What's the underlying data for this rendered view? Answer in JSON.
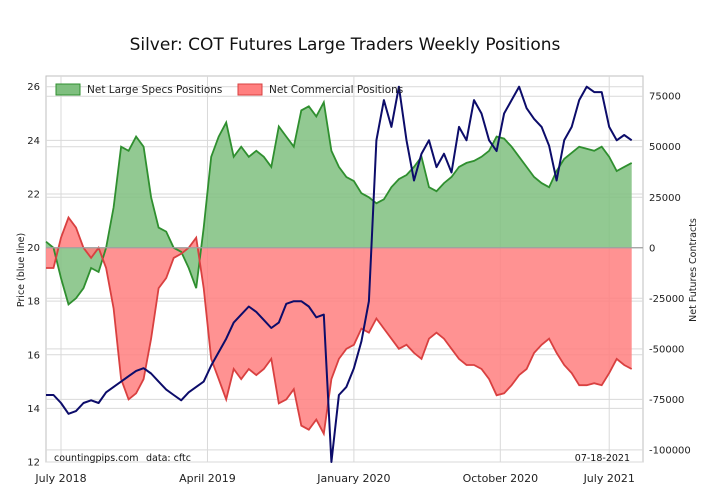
{
  "chart_data": {
    "type": "area",
    "title": "Silver: COT Futures Large Traders Weekly Positions",
    "ylabel_left": "Price (blue line)",
    "ylabel_right": "Net Futures Contracts",
    "xlim": [
      0,
      159
    ],
    "ylim_left": [
      12,
      26.4
    ],
    "ylim_right": [
      -106000,
      85000
    ],
    "left_ticks": [
      {
        "v": 12,
        "label": "12"
      },
      {
        "v": 14,
        "label": "14"
      },
      {
        "v": 16,
        "label": "16"
      },
      {
        "v": 18,
        "label": "18"
      },
      {
        "v": 20,
        "label": "20"
      },
      {
        "v": 22,
        "label": "22"
      },
      {
        "v": 24,
        "label": "24"
      },
      {
        "v": 26,
        "label": "26"
      }
    ],
    "right_ticks": [
      {
        "v": 75000,
        "label": "75000"
      },
      {
        "v": 50000,
        "label": "50000"
      },
      {
        "v": 25000,
        "label": "25000"
      },
      {
        "v": 0,
        "label": "0"
      },
      {
        "v": -25000,
        "label": "-25000"
      },
      {
        "v": -50000,
        "label": "-50000"
      },
      {
        "v": -75000,
        "label": "-75000"
      },
      {
        "v": -100000,
        "label": "-100000"
      }
    ],
    "x_ticks": [
      {
        "v": 4,
        "label": "July 2018"
      },
      {
        "v": 43,
        "label": "April 2019"
      },
      {
        "v": 82,
        "label": "January 2020"
      },
      {
        "v": 121,
        "label": "October 2020"
      },
      {
        "v": 150,
        "label": "July 2021"
      }
    ],
    "grid": true,
    "legend_placement": "top-left",
    "colors": {
      "specs_fill": "#7fbf7f",
      "specs_line": "#2f8f2f",
      "comm_fill": "#ff7f7f",
      "comm_line": "#d94040",
      "price_line": "#0c0c6a"
    },
    "series": [
      {
        "name": "Net Large Specs Positions",
        "x": [
          0,
          2,
          4,
          6,
          8,
          10,
          12,
          14,
          16,
          18,
          20,
          22,
          24,
          26,
          28,
          30,
          32,
          34,
          36,
          38,
          40,
          42,
          44,
          46,
          48,
          50,
          52,
          54,
          56,
          58,
          60,
          62,
          64,
          66,
          68,
          70,
          72,
          74,
          76,
          78,
          80,
          82,
          84,
          86,
          88,
          90,
          92,
          94,
          96,
          98,
          100,
          102,
          104,
          106,
          108,
          110,
          112,
          114,
          116,
          118,
          120,
          122,
          124,
          126,
          128,
          130,
          132,
          134,
          136,
          138,
          140,
          142,
          144,
          146,
          148,
          150,
          152,
          154,
          156
        ],
        "values": [
          3000,
          0,
          -15000,
          -28000,
          -25000,
          -20000,
          -10000,
          -12000,
          0,
          20000,
          50000,
          48000,
          55000,
          50000,
          25000,
          10000,
          8000,
          0,
          -2000,
          -10000,
          -20000,
          10000,
          45000,
          55000,
          62000,
          45000,
          50000,
          45000,
          48000,
          45000,
          40000,
          60000,
          55000,
          50000,
          68000,
          70000,
          65000,
          72000,
          48000,
          40000,
          35000,
          33000,
          27000,
          25000,
          22000,
          24000,
          30000,
          34000,
          36000,
          40000,
          45000,
          30000,
          28000,
          32000,
          35000,
          40000,
          42000,
          43000,
          45000,
          48000,
          55000,
          54000,
          50000,
          45000,
          40000,
          35000,
          32000,
          30000,
          38000,
          44000,
          47000,
          50000,
          49000,
          48000,
          50000,
          45000,
          38000,
          40000,
          42000
        ]
      },
      {
        "name": "Net Commercial Positions",
        "x": [
          0,
          2,
          4,
          6,
          8,
          10,
          12,
          14,
          16,
          18,
          20,
          22,
          24,
          26,
          28,
          30,
          32,
          34,
          36,
          38,
          40,
          42,
          44,
          46,
          48,
          50,
          52,
          54,
          56,
          58,
          60,
          62,
          64,
          66,
          68,
          70,
          72,
          74,
          76,
          78,
          80,
          82,
          84,
          86,
          88,
          90,
          92,
          94,
          96,
          98,
          100,
          102,
          104,
          106,
          108,
          110,
          112,
          114,
          116,
          118,
          120,
          122,
          124,
          126,
          128,
          130,
          132,
          134,
          136,
          138,
          140,
          142,
          144,
          146,
          148,
          150,
          152,
          154,
          156
        ],
        "values": [
          -10000,
          -10000,
          5000,
          15000,
          10000,
          0,
          -5000,
          0,
          -10000,
          -30000,
          -65000,
          -75000,
          -72000,
          -65000,
          -45000,
          -20000,
          -15000,
          -5000,
          -3000,
          0,
          5000,
          -20000,
          -55000,
          -65000,
          -75000,
          -60000,
          -65000,
          -60000,
          -63000,
          -60000,
          -55000,
          -77000,
          -75000,
          -70000,
          -88000,
          -90000,
          -85000,
          -92000,
          -65000,
          -55000,
          -50000,
          -48000,
          -40000,
          -42000,
          -35000,
          -40000,
          -45000,
          -50000,
          -48000,
          -52000,
          -55000,
          -45000,
          -42000,
          -45000,
          -50000,
          -55000,
          -58000,
          -58000,
          -60000,
          -65000,
          -73000,
          -72000,
          -68000,
          -63000,
          -60000,
          -52000,
          -48000,
          -45000,
          -52000,
          -58000,
          -62000,
          -68000,
          -68000,
          -67000,
          -68000,
          -62000,
          -55000,
          -58000,
          -60000
        ]
      },
      {
        "name": "Price",
        "x": [
          0,
          2,
          4,
          6,
          8,
          10,
          12,
          14,
          16,
          18,
          20,
          22,
          24,
          26,
          28,
          30,
          32,
          34,
          36,
          38,
          40,
          42,
          44,
          46,
          48,
          50,
          52,
          54,
          56,
          58,
          60,
          62,
          64,
          66,
          68,
          70,
          72,
          74,
          76,
          78,
          80,
          82,
          84,
          86,
          88,
          90,
          92,
          94,
          96,
          98,
          100,
          102,
          104,
          106,
          108,
          110,
          112,
          114,
          116,
          118,
          120,
          122,
          124,
          126,
          128,
          130,
          132,
          134,
          136,
          138,
          140,
          142,
          144,
          146,
          148,
          150,
          152,
          154,
          156
        ],
        "values": [
          14.5,
          14.5,
          14.2,
          13.8,
          13.9,
          14.2,
          14.3,
          14.2,
          14.6,
          14.8,
          15.0,
          15.2,
          15.4,
          15.5,
          15.3,
          15.0,
          14.7,
          14.5,
          14.3,
          14.6,
          14.8,
          15.0,
          15.6,
          16.1,
          16.6,
          17.2,
          17.5,
          17.8,
          17.6,
          17.3,
          17.0,
          17.2,
          17.9,
          18.0,
          18.0,
          17.8,
          17.4,
          17.5,
          12.0,
          14.5,
          14.8,
          15.5,
          16.5,
          18.0,
          24.0,
          25.5,
          24.5,
          26.0,
          24.0,
          22.5,
          23.5,
          24.0,
          23.0,
          23.5,
          22.8,
          24.5,
          24.0,
          25.5,
          25.0,
          24.0,
          23.6,
          25.0,
          25.5,
          26.0,
          25.2,
          24.8,
          24.5,
          23.8,
          22.5,
          24.0,
          24.5,
          25.5,
          26.0,
          25.8,
          25.8,
          24.5,
          24.0,
          24.2,
          24.0
        ]
      }
    ]
  },
  "annotations": {
    "source": "countingpips.com",
    "data": "data: cftc",
    "date": "07-18-2021"
  }
}
